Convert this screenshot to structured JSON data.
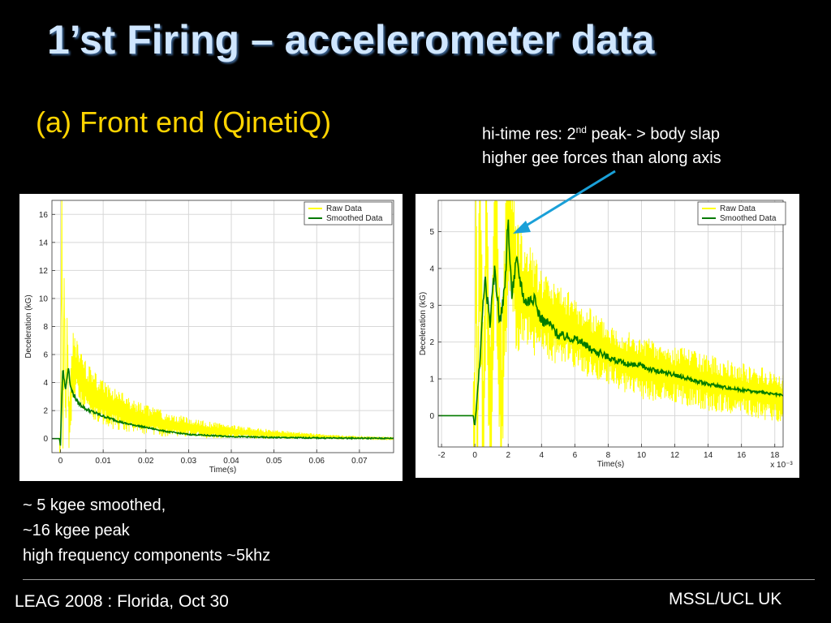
{
  "slide": {
    "title": "1’st Firing –  accelerometer data",
    "subtitle": "(a) Front end (QinetiQ)",
    "annotation": {
      "line1_pre": "hi-time res:   2",
      "line1_sup": "nd",
      "line1_post": " peak- > body slap",
      "line2": "higher gee forces than along axis"
    },
    "notes": [
      "~ 5 kgee smoothed,",
      "~16 kgee peak",
      "high frequency components ~5khz"
    ],
    "footer_left": "LEAG 2008 :  Florida, Oct 30",
    "footer_right": "MSSL/UCL UK",
    "colors": {
      "title": "#cfe6ff",
      "subtitle": "#ffd400",
      "raw": "#ffff00",
      "smoothed": "#007a00",
      "arrow": "#1aa0d8"
    }
  },
  "chart_data": [
    {
      "type": "line",
      "xlabel": "Time(s)",
      "ylabel": "Deceleration (kG)",
      "xlim": [
        -0.002,
        0.078
      ],
      "ylim": [
        -1,
        17
      ],
      "xticks": [
        0,
        0.01,
        0.02,
        0.03,
        0.04,
        0.05,
        0.06,
        0.07
      ],
      "xtick_labels": [
        "0",
        "0.01",
        "0.02",
        "0.03",
        "0.04",
        "0.05",
        "0.06",
        "0.07"
      ],
      "yticks": [
        0,
        2,
        4,
        6,
        8,
        10,
        12,
        14,
        16
      ],
      "grid": true,
      "legend_position": "top-right",
      "series": [
        {
          "name": "Raw Data",
          "x": [
            -0.002,
            -0.0002,
            0,
            0.0003,
            0.0006,
            0.0009,
            0.0012,
            0.0016,
            0.002,
            0.003,
            0.005,
            0.008,
            0.012,
            0.018,
            0.025,
            0.035,
            0.05,
            0.065,
            0.078
          ],
          "y": [
            0,
            0,
            -1,
            16.5,
            -0.8,
            11,
            1,
            7,
            0.5,
            5.5,
            4,
            3,
            2.2,
            1.5,
            1,
            0.6,
            0.3,
            0.1,
            0
          ],
          "amplitude_x": [
            0,
            0.003,
            0.01,
            0.02,
            0.03,
            0.045,
            0.06,
            0.078
          ],
          "amplitude_y": [
            3,
            2.2,
            1.6,
            1.1,
            0.7,
            0.4,
            0.2,
            0.05
          ]
        },
        {
          "name": "Smoothed Data",
          "x": [
            -0.002,
            -0.0002,
            0,
            0.0005,
            0.0012,
            0.0018,
            0.0025,
            0.004,
            0.006,
            0.01,
            0.015,
            0.02,
            0.025,
            0.03,
            0.04,
            0.05,
            0.06,
            0.07,
            0.078
          ],
          "y": [
            0,
            0,
            -0.5,
            5,
            3.5,
            5.2,
            3.5,
            2.6,
            2.1,
            1.6,
            1.1,
            0.8,
            0.5,
            0.3,
            0.15,
            0.08,
            0.05,
            0.03,
            0.02
          ]
        }
      ]
    },
    {
      "type": "line",
      "xlabel": "Time(s)",
      "ylabel": "Deceleration (kG)",
      "x_scale_label": "x 10⁻³",
      "xlim": [
        -2.2,
        18.5
      ],
      "ylim": [
        -0.85,
        5.85
      ],
      "xticks": [
        -2,
        0,
        2,
        4,
        6,
        8,
        10,
        12,
        14,
        16,
        18
      ],
      "xtick_labels": [
        "-2",
        "0",
        "2",
        "4",
        "6",
        "8",
        "10",
        "12",
        "14",
        "16",
        "18"
      ],
      "yticks": [
        0,
        1,
        2,
        3,
        4,
        5
      ],
      "grid": true,
      "legend_position": "top-right",
      "series": [
        {
          "name": "Raw Data",
          "x": [
            -2.2,
            -0.1,
            0,
            0.05,
            0.15,
            0.3,
            0.5,
            0.7,
            0.9,
            1.2,
            1.6,
            2,
            2.5,
            3,
            4,
            6,
            8,
            10,
            12,
            14,
            16,
            18.5
          ],
          "y": [
            0,
            0,
            -0.8,
            5.8,
            -0.8,
            5.8,
            -0.8,
            5.8,
            -0.5,
            5.8,
            0,
            5.8,
            3.6,
            3.3,
            2.8,
            2.2,
            1.7,
            1.3,
            1.1,
            0.9,
            0.7,
            0.5
          ],
          "amplitude_x": [
            0,
            2,
            3,
            5,
            8,
            12,
            18.5
          ],
          "amplitude_y": [
            3,
            2.5,
            1.5,
            1.1,
            0.9,
            0.8,
            0.7
          ]
        },
        {
          "name": "Smoothed Data",
          "x": [
            -2.2,
            -0.1,
            0,
            0.3,
            0.6,
            0.9,
            1.2,
            1.5,
            1.8,
            2,
            2.2,
            2.5,
            3,
            3.5,
            4,
            4.5,
            5,
            6,
            7,
            8,
            9,
            10,
            11,
            12,
            14,
            16,
            18.5
          ],
          "y": [
            0,
            0,
            -0.3,
            1.5,
            3.8,
            2.5,
            4,
            2.5,
            3.5,
            5.3,
            3.3,
            4.2,
            3.1,
            3.2,
            2.6,
            2.5,
            2.2,
            2.1,
            1.8,
            1.6,
            1.4,
            1.35,
            1.2,
            1.1,
            0.85,
            0.7,
            0.55
          ]
        }
      ]
    }
  ]
}
